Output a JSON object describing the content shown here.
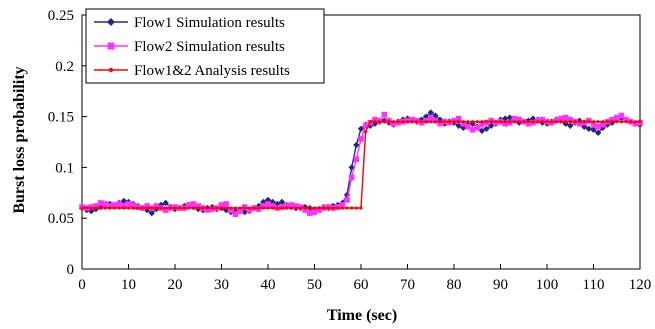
{
  "chart_data": {
    "type": "line",
    "title": "",
    "xlabel": "Time (sec)",
    "ylabel": "Burst loss probability",
    "xlim": [
      0,
      120
    ],
    "ylim": [
      0,
      0.25
    ],
    "x_ticks": [
      0,
      10,
      20,
      30,
      40,
      50,
      60,
      70,
      80,
      90,
      100,
      110,
      120
    ],
    "y_ticks": [
      0,
      0.05,
      0.1,
      0.15,
      0.2,
      0.25
    ],
    "x_tick_labels": [
      "0",
      "10",
      "20",
      "30",
      "40",
      "50",
      "60",
      "70",
      "80",
      "90",
      "100",
      "110",
      "120"
    ],
    "y_tick_labels": [
      "0",
      "0.05",
      "0.1",
      "0.15",
      "0.2",
      "0.25"
    ],
    "grid": false,
    "legend_position": "top-left",
    "series": [
      {
        "name": "Flow1 Simulation results",
        "color": "#1f2b7a",
        "marker": "diamond",
        "x": [
          0,
          1,
          2,
          3,
          4,
          5,
          6,
          7,
          8,
          9,
          10,
          11,
          12,
          13,
          14,
          15,
          16,
          17,
          18,
          19,
          20,
          21,
          22,
          23,
          24,
          25,
          26,
          27,
          28,
          29,
          30,
          31,
          32,
          33,
          34,
          35,
          36,
          37,
          38,
          39,
          40,
          41,
          42,
          43,
          44,
          45,
          46,
          47,
          48,
          49,
          50,
          51,
          52,
          53,
          54,
          55,
          56,
          57,
          58,
          59,
          60,
          61,
          62,
          63,
          64,
          65,
          66,
          67,
          68,
          69,
          70,
          71,
          72,
          73,
          74,
          75,
          76,
          77,
          78,
          79,
          80,
          81,
          82,
          83,
          84,
          85,
          86,
          87,
          88,
          89,
          90,
          91,
          92,
          93,
          94,
          95,
          96,
          97,
          98,
          99,
          100,
          101,
          102,
          103,
          104,
          105,
          106,
          107,
          108,
          109,
          110,
          111,
          112,
          113,
          114,
          115,
          116,
          117,
          118,
          119,
          120
        ],
        "y": [
          0.06,
          0.058,
          0.057,
          0.059,
          0.061,
          0.063,
          0.064,
          0.062,
          0.065,
          0.067,
          0.066,
          0.064,
          0.062,
          0.06,
          0.058,
          0.055,
          0.059,
          0.063,
          0.065,
          0.061,
          0.059,
          0.06,
          0.062,
          0.063,
          0.061,
          0.059,
          0.058,
          0.06,
          0.061,
          0.059,
          0.06,
          0.058,
          0.056,
          0.057,
          0.058,
          0.056,
          0.057,
          0.06,
          0.062,
          0.066,
          0.068,
          0.066,
          0.064,
          0.066,
          0.063,
          0.061,
          0.06,
          0.06,
          0.061,
          0.06,
          0.058,
          0.059,
          0.061,
          0.06,
          0.062,
          0.063,
          0.065,
          0.073,
          0.1,
          0.122,
          0.138,
          0.142,
          0.141,
          0.143,
          0.145,
          0.146,
          0.144,
          0.142,
          0.145,
          0.147,
          0.148,
          0.146,
          0.145,
          0.147,
          0.15,
          0.154,
          0.151,
          0.147,
          0.143,
          0.145,
          0.144,
          0.141,
          0.139,
          0.142,
          0.143,
          0.14,
          0.136,
          0.138,
          0.141,
          0.143,
          0.147,
          0.148,
          0.149,
          0.146,
          0.144,
          0.145,
          0.146,
          0.148,
          0.147,
          0.144,
          0.143,
          0.145,
          0.147,
          0.146,
          0.143,
          0.141,
          0.144,
          0.146,
          0.14,
          0.138,
          0.137,
          0.134,
          0.139,
          0.142,
          0.144,
          0.147,
          0.149,
          0.147,
          0.145,
          0.143,
          0.142
        ]
      },
      {
        "name": "Flow2 Simulation results",
        "color": "#ff33ff",
        "marker": "square",
        "x": [
          0,
          1,
          2,
          3,
          4,
          5,
          6,
          7,
          8,
          9,
          10,
          11,
          12,
          13,
          14,
          15,
          16,
          17,
          18,
          19,
          20,
          21,
          22,
          23,
          24,
          25,
          26,
          27,
          28,
          29,
          30,
          31,
          32,
          33,
          34,
          35,
          36,
          37,
          38,
          39,
          40,
          41,
          42,
          43,
          44,
          45,
          46,
          47,
          48,
          49,
          50,
          51,
          52,
          53,
          54,
          55,
          56,
          57,
          58,
          59,
          60,
          61,
          62,
          63,
          64,
          65,
          66,
          67,
          68,
          69,
          70,
          71,
          72,
          73,
          74,
          75,
          76,
          77,
          78,
          79,
          80,
          81,
          82,
          83,
          84,
          85,
          86,
          87,
          88,
          89,
          90,
          91,
          92,
          93,
          94,
          95,
          96,
          97,
          98,
          99,
          100,
          101,
          102,
          103,
          104,
          105,
          106,
          107,
          108,
          109,
          110,
          111,
          112,
          113,
          114,
          115,
          116,
          117,
          118,
          119,
          120
        ],
        "y": [
          0.061,
          0.06,
          0.061,
          0.062,
          0.065,
          0.064,
          0.062,
          0.063,
          0.064,
          0.062,
          0.064,
          0.063,
          0.061,
          0.06,
          0.062,
          0.06,
          0.062,
          0.06,
          0.058,
          0.06,
          0.061,
          0.06,
          0.06,
          0.063,
          0.064,
          0.062,
          0.06,
          0.058,
          0.059,
          0.06,
          0.063,
          0.064,
          0.058,
          0.054,
          0.057,
          0.061,
          0.058,
          0.06,
          0.059,
          0.062,
          0.064,
          0.062,
          0.06,
          0.061,
          0.062,
          0.063,
          0.062,
          0.061,
          0.058,
          0.055,
          0.056,
          0.058,
          0.06,
          0.061,
          0.06,
          0.061,
          0.063,
          0.068,
          0.09,
          0.108,
          0.128,
          0.141,
          0.144,
          0.147,
          0.146,
          0.152,
          0.146,
          0.143,
          0.144,
          0.145,
          0.146,
          0.147,
          0.146,
          0.144,
          0.146,
          0.149,
          0.146,
          0.143,
          0.145,
          0.144,
          0.146,
          0.148,
          0.143,
          0.14,
          0.137,
          0.139,
          0.142,
          0.144,
          0.146,
          0.144,
          0.145,
          0.143,
          0.144,
          0.148,
          0.147,
          0.145,
          0.143,
          0.144,
          0.146,
          0.147,
          0.145,
          0.144,
          0.146,
          0.148,
          0.149,
          0.147,
          0.145,
          0.143,
          0.144,
          0.146,
          0.142,
          0.14,
          0.142,
          0.145,
          0.147,
          0.149,
          0.151,
          0.147,
          0.145,
          0.143,
          0.144
        ]
      },
      {
        "name": "Flow1&2 Analysis results",
        "color": "#ff0000",
        "marker": "dot",
        "x": [
          0,
          1,
          2,
          3,
          4,
          5,
          6,
          7,
          8,
          9,
          10,
          11,
          12,
          13,
          14,
          15,
          16,
          17,
          18,
          19,
          20,
          21,
          22,
          23,
          24,
          25,
          26,
          27,
          28,
          29,
          30,
          31,
          32,
          33,
          34,
          35,
          36,
          37,
          38,
          39,
          40,
          41,
          42,
          43,
          44,
          45,
          46,
          47,
          48,
          49,
          50,
          51,
          52,
          53,
          54,
          55,
          56,
          57,
          58,
          59,
          60,
          61,
          62,
          63,
          64,
          65,
          66,
          67,
          68,
          69,
          70,
          71,
          72,
          73,
          74,
          75,
          76,
          77,
          78,
          79,
          80,
          81,
          82,
          83,
          84,
          85,
          86,
          87,
          88,
          89,
          90,
          91,
          92,
          93,
          94,
          95,
          96,
          97,
          98,
          99,
          100,
          101,
          102,
          103,
          104,
          105,
          106,
          107,
          108,
          109,
          110,
          111,
          112,
          113,
          114,
          115,
          116,
          117,
          118,
          119,
          120
        ],
        "y": [
          0.06,
          0.06,
          0.06,
          0.06,
          0.06,
          0.06,
          0.06,
          0.06,
          0.06,
          0.06,
          0.06,
          0.06,
          0.06,
          0.06,
          0.06,
          0.06,
          0.06,
          0.06,
          0.06,
          0.06,
          0.06,
          0.06,
          0.06,
          0.06,
          0.06,
          0.06,
          0.06,
          0.06,
          0.06,
          0.06,
          0.06,
          0.06,
          0.06,
          0.06,
          0.06,
          0.06,
          0.06,
          0.06,
          0.06,
          0.06,
          0.06,
          0.06,
          0.06,
          0.06,
          0.06,
          0.06,
          0.06,
          0.06,
          0.06,
          0.06,
          0.06,
          0.06,
          0.06,
          0.06,
          0.06,
          0.06,
          0.06,
          0.06,
          0.06,
          0.06,
          0.06,
          0.135,
          0.145,
          0.145,
          0.145,
          0.145,
          0.145,
          0.145,
          0.145,
          0.145,
          0.145,
          0.145,
          0.145,
          0.145,
          0.145,
          0.145,
          0.145,
          0.145,
          0.145,
          0.145,
          0.145,
          0.145,
          0.145,
          0.145,
          0.145,
          0.145,
          0.145,
          0.145,
          0.145,
          0.145,
          0.145,
          0.145,
          0.145,
          0.145,
          0.145,
          0.145,
          0.145,
          0.145,
          0.145,
          0.145,
          0.145,
          0.145,
          0.145,
          0.145,
          0.145,
          0.145,
          0.145,
          0.145,
          0.145,
          0.145,
          0.145,
          0.145,
          0.145,
          0.145,
          0.145,
          0.145,
          0.145,
          0.145,
          0.145,
          0.145,
          0.145
        ]
      }
    ]
  }
}
